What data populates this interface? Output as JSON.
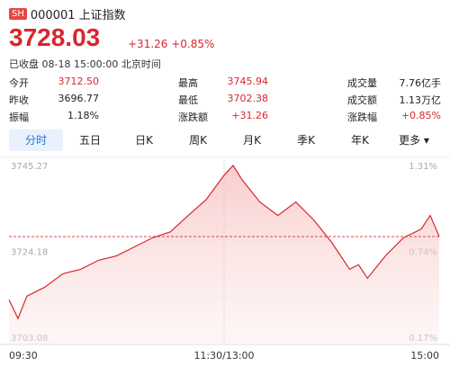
{
  "header": {
    "badge": "SH",
    "name": "000001 上证指数",
    "price": "3728.03",
    "change": "+31.26",
    "change_pct": "+0.85%",
    "status": "已收盘 08-18 15:00:00 北京时间"
  },
  "stats": [
    [
      [
        "今开",
        "3712.50"
      ],
      [
        "最高",
        "3745.94"
      ],
      [
        "成交量",
        "7.76亿手"
      ]
    ],
    [
      [
        "昨收",
        "3696.77"
      ],
      [
        "最低",
        "3702.38"
      ],
      [
        "成交额",
        "1.13万亿"
      ]
    ],
    [
      [
        "振幅",
        "1.18%"
      ],
      [
        "涨跌额",
        "+31.26"
      ],
      [
        "涨跌幅",
        "+0.85%"
      ]
    ]
  ],
  "tabs": [
    "分时",
    "五日",
    "日K",
    "周K",
    "月K",
    "季K",
    "年K",
    "更多"
  ],
  "chart_data": {
    "type": "line",
    "x": [
      0,
      5,
      10,
      20,
      30,
      40,
      50,
      60,
      70,
      80,
      90,
      100,
      110,
      120,
      125,
      130,
      140,
      150,
      160,
      170,
      180,
      185,
      190,
      195,
      200,
      210,
      220,
      230,
      235,
      240
    ],
    "series": [
      {
        "color": "#d9262c",
        "values": [
          3712.5,
          3707.9,
          3713.4,
          3715.6,
          3718.9,
          3720.0,
          3722.2,
          3723.3,
          3725.5,
          3727.7,
          3729.2,
          3733.2,
          3737.1,
          3743.1,
          3745.5,
          3742.0,
          3736.5,
          3733.2,
          3736.5,
          3732.1,
          3726.6,
          3723.3,
          3720.0,
          3721.1,
          3717.8,
          3723.3,
          3727.7,
          3729.9,
          3733.2,
          3728.03
        ]
      }
    ],
    "xlim": [
      0,
      240
    ],
    "xticks": [
      {
        "value": 0,
        "label": "09:30"
      },
      {
        "value": 120,
        "label": "11:30/13:00"
      },
      {
        "value": 240,
        "label": "15:00"
      }
    ],
    "ylim": [
      3703.08,
      3745.27
    ],
    "yticks": [
      3745.27,
      3724.18,
      3703.08
    ],
    "y2lim": [
      0.17,
      1.31
    ],
    "y2ticks": [
      {
        "value": 1.31,
        "label": "1.31%"
      },
      {
        "value": 0.74,
        "label": "0.74%"
      },
      {
        "value": 0.17,
        "label": "0.17%"
      }
    ],
    "current": 3728.03
  }
}
